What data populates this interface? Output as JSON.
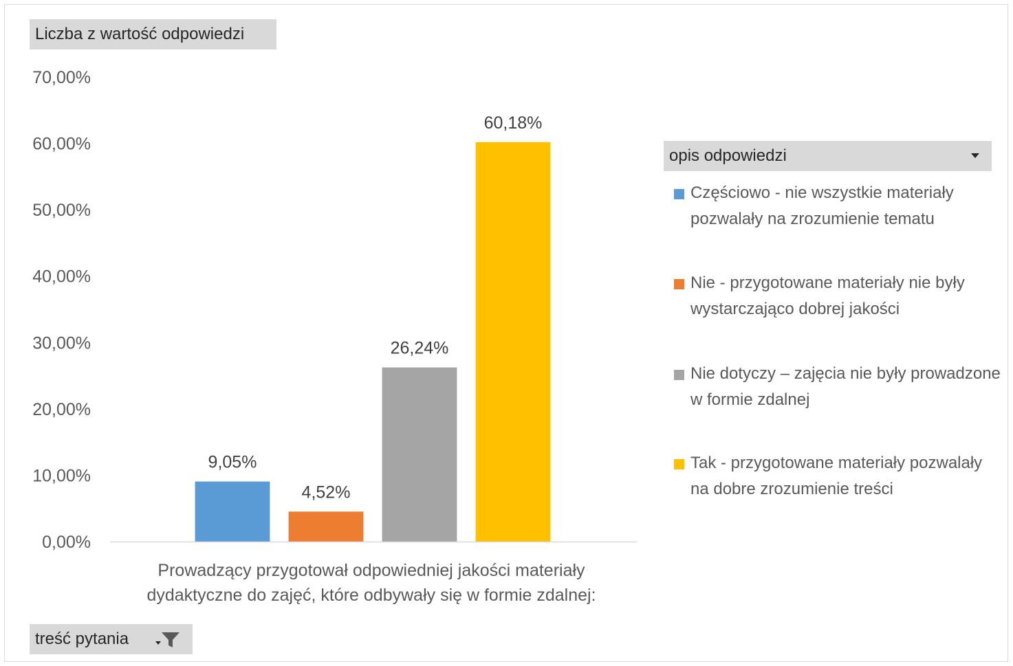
{
  "chart_data": {
    "type": "bar",
    "value_field_label": "Liczba z wartość odpowiedzi",
    "row_field_label": "treść pytania",
    "legend_field_label": "opis odpowiedzi",
    "category_label": "Prowadzący przygotował odpowiedniej jakości materiały dydaktyczne do zajęć, które odbywały się w formie zdalnej:",
    "y_ticks": [
      "0,00%",
      "10,00%",
      "20,00%",
      "30,00%",
      "40,00%",
      "50,00%",
      "60,00%",
      "70,00%"
    ],
    "ylim": [
      0,
      70
    ],
    "grid": false,
    "legend_position": "right",
    "series": [
      {
        "name": "Częściowo - nie wszystkie materiały pozwalały na zrozumienie tematu",
        "value": 9.05,
        "label": "9,05%",
        "color": "#5B9BD5"
      },
      {
        "name": "Nie - przygotowane materiały nie były wystarczająco dobrej jakości",
        "value": 4.52,
        "label": "4,52%",
        "color": "#ED7D31"
      },
      {
        "name": "Nie dotyczy – zajęcia nie były prowadzone w formie zdalnej",
        "value": 26.24,
        "label": "26,24%",
        "color": "#A5A5A5"
      },
      {
        "name": "Tak - przygotowane materiały pozwalały na dobre zrozumienie treści",
        "value": 60.18,
        "label": "60,18%",
        "color": "#FFC000"
      }
    ]
  }
}
